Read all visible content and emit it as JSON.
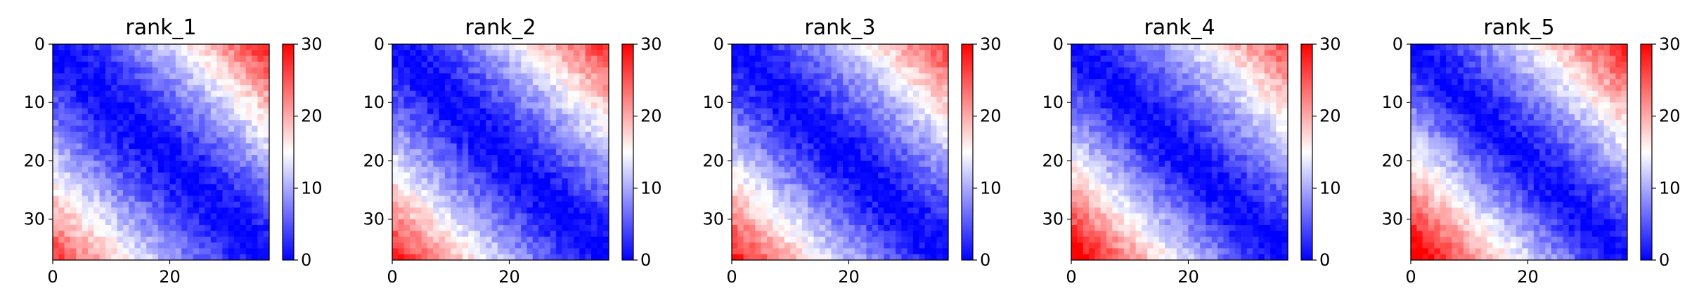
{
  "chart_data": [
    {
      "type": "heatmap",
      "title": "rank_1",
      "n": 37,
      "x_ticks": [
        0,
        20
      ],
      "y_ticks": [
        0,
        10,
        20,
        30
      ],
      "colorbar": {
        "min": 0,
        "max": 30,
        "ticks": [
          0,
          10,
          20,
          30
        ]
      },
      "colormap": [
        "#0000ff",
        "#ffffff",
        "#ff0000"
      ],
      "values_model": {
        "max_upper": 26,
        "max_lower": 24,
        "power": 1.35,
        "noise": 2.0
      }
    },
    {
      "type": "heatmap",
      "title": "rank_2",
      "n": 37,
      "x_ticks": [
        0,
        20
      ],
      "y_ticks": [
        0,
        10,
        20,
        30
      ],
      "colorbar": {
        "min": 0,
        "max": 30,
        "ticks": [
          0,
          10,
          20,
          30
        ]
      },
      "colormap": [
        "#0000ff",
        "#ffffff",
        "#ff0000"
      ],
      "values_model": {
        "max_upper": 25,
        "max_lower": 26,
        "power": 1.3,
        "noise": 2.0
      }
    },
    {
      "type": "heatmap",
      "title": "rank_3",
      "n": 37,
      "x_ticks": [
        0,
        20
      ],
      "y_ticks": [
        0,
        10,
        20,
        30
      ],
      "colorbar": {
        "min": 0,
        "max": 30,
        "ticks": [
          0,
          10,
          20,
          30
        ]
      },
      "colormap": [
        "#0000ff",
        "#ffffff",
        "#ff0000"
      ],
      "values_model": {
        "max_upper": 24,
        "max_lower": 26,
        "power": 1.3,
        "noise": 2.0
      }
    },
    {
      "type": "heatmap",
      "title": "rank_4",
      "n": 37,
      "x_ticks": [
        0,
        20
      ],
      "y_ticks": [
        0,
        10,
        20,
        30
      ],
      "colorbar": {
        "min": 0,
        "max": 30,
        "ticks": [
          0,
          10,
          20,
          30
        ]
      },
      "colormap": [
        "#0000ff",
        "#ffffff",
        "#ff0000"
      ],
      "values_model": {
        "max_upper": 23,
        "max_lower": 29,
        "power": 1.25,
        "noise": 2.0
      }
    },
    {
      "type": "heatmap",
      "title": "rank_5",
      "n": 37,
      "x_ticks": [
        0,
        20
      ],
      "y_ticks": [
        0,
        10,
        20,
        30
      ],
      "colorbar": {
        "min": 0,
        "max": 30,
        "ticks": [
          0,
          10,
          20,
          30
        ]
      },
      "colormap": [
        "#0000ff",
        "#ffffff",
        "#ff0000"
      ],
      "values_model": {
        "max_upper": 26,
        "max_lower": 30,
        "power": 1.2,
        "noise": 2.0
      }
    }
  ]
}
